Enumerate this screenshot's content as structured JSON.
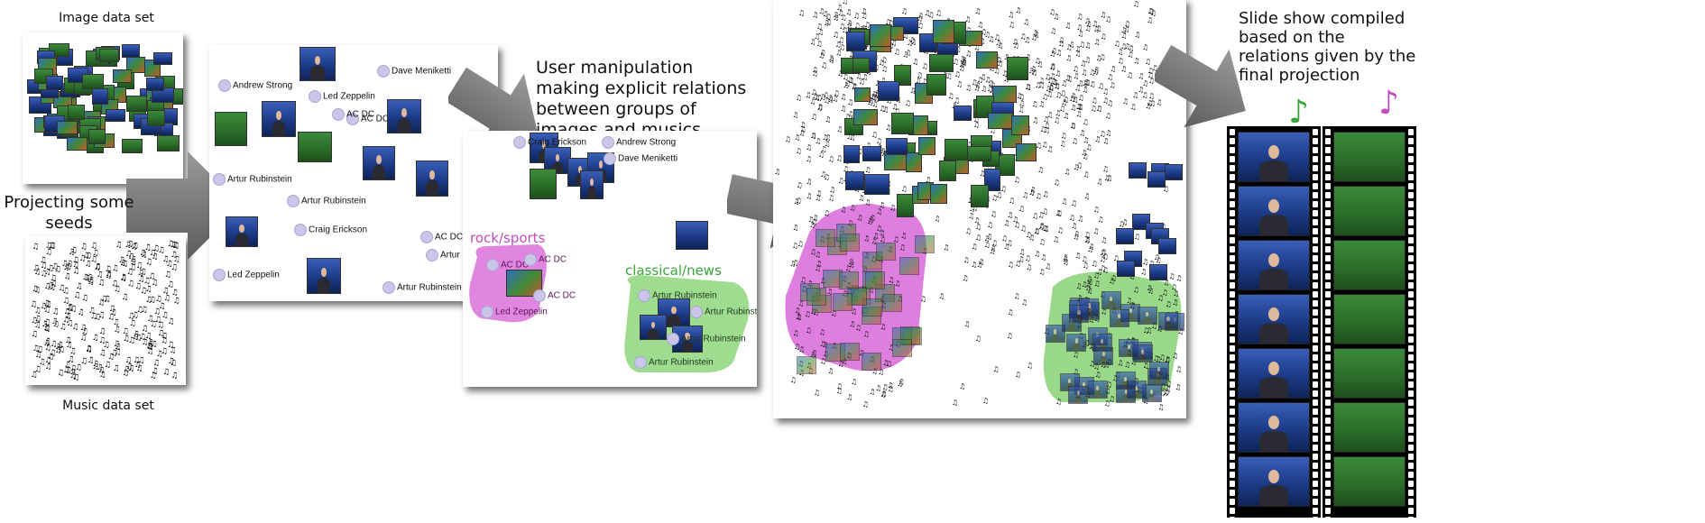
{
  "captions": {
    "image_set": "Image data set",
    "music_set": "Music data set",
    "projecting": "Projecting some seeds",
    "user_manipulation": "User manipulation making explicit relations between groups of images and musics",
    "slideshow": "Slide show compiled based on the relations given by the final projection"
  },
  "seed_labels": [
    "Andrew Strong",
    "Dave Meniketti",
    "Led Zeppelin",
    "AC DC",
    "AC DC",
    "Artur Rubinstein",
    "Artur Rubinstein",
    "Craig Erickson",
    "AC DC",
    "Artur Rubinstein",
    "Led Zeppelin",
    "Artur Rubinstein"
  ],
  "manip_labels": [
    "Craig Erickson",
    "Andrew Strong",
    "Dave Meniketti",
    "AC DC",
    "AC DC",
    "AC DC",
    "Led Zeppelin",
    "Artur Rubinstein",
    "Artur Rubinstein",
    "Artur Rubinstein",
    "Artur Rubinstein"
  ],
  "groups": {
    "rock": {
      "label": "rock/sports",
      "color": "#c24cc2"
    },
    "classical": {
      "label": "classical/news",
      "color": "#3aa63a"
    }
  },
  "colors": {
    "arrow": "#7a7a7a",
    "note": "#111111",
    "magenta_blob": "#d65ed6",
    "green_blob": "#7fd06b",
    "seed_dot": "#c9c6e8"
  },
  "icons": {
    "music_note": "music-note-icon",
    "arrow": "big-gray-arrow-icon"
  }
}
